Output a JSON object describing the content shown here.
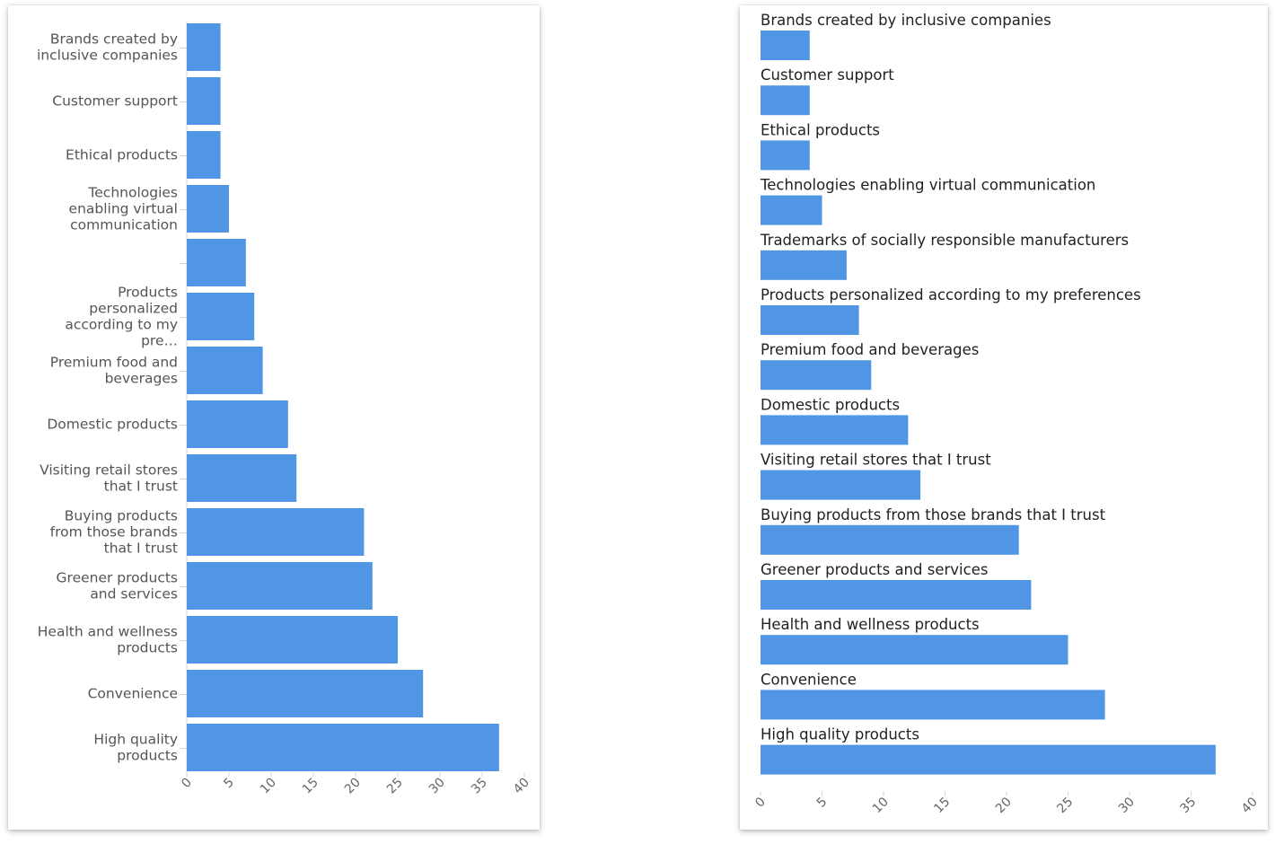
{
  "chart_data": [
    {
      "type": "bar",
      "orientation": "horizontal",
      "label_position": "left",
      "grid": false,
      "xlim": [
        0,
        40
      ],
      "x_ticks": [
        "0",
        "5",
        "10",
        "15",
        "20",
        "25",
        "30",
        "35",
        "40"
      ],
      "bar_color": "#5096E4",
      "categories": [
        "Brands created by inclusive companies",
        "Customer support",
        "Ethical products",
        "Technologies enabling virtual communication",
        "",
        "Products personalized according to my pre…",
        "Premium food and beverages",
        "Domestic products",
        "Visiting retail stores that I trust",
        "Buying products from those brands that I trust",
        "Greener products and services",
        "Health and wellness products",
        "Convenience",
        "High quality products"
      ],
      "values": [
        4,
        4,
        4,
        5,
        7,
        8,
        9,
        12,
        13,
        21,
        22,
        25,
        28,
        37
      ]
    },
    {
      "type": "bar",
      "orientation": "horizontal",
      "label_position": "above-bar",
      "grid": false,
      "xlim": [
        0,
        40
      ],
      "x_ticks": [
        "0",
        "5",
        "10",
        "15",
        "20",
        "25",
        "30",
        "35",
        "40"
      ],
      "bar_color": "#5096E4",
      "categories": [
        "Brands created by inclusive companies",
        "Customer support",
        "Ethical products",
        "Technologies enabling virtual communication",
        "Trademarks of socially responsible manufacturers",
        "Products personalized according to my preferences",
        "Premium food and beverages",
        "Domestic products",
        "Visiting retail stores that I trust",
        "Buying products from those brands that I trust",
        "Greener products and services",
        "Health and wellness products",
        "Convenience",
        "High quality products"
      ],
      "values": [
        4,
        4,
        4,
        5,
        7,
        8,
        9,
        12,
        13,
        21,
        22,
        25,
        28,
        37
      ]
    }
  ]
}
